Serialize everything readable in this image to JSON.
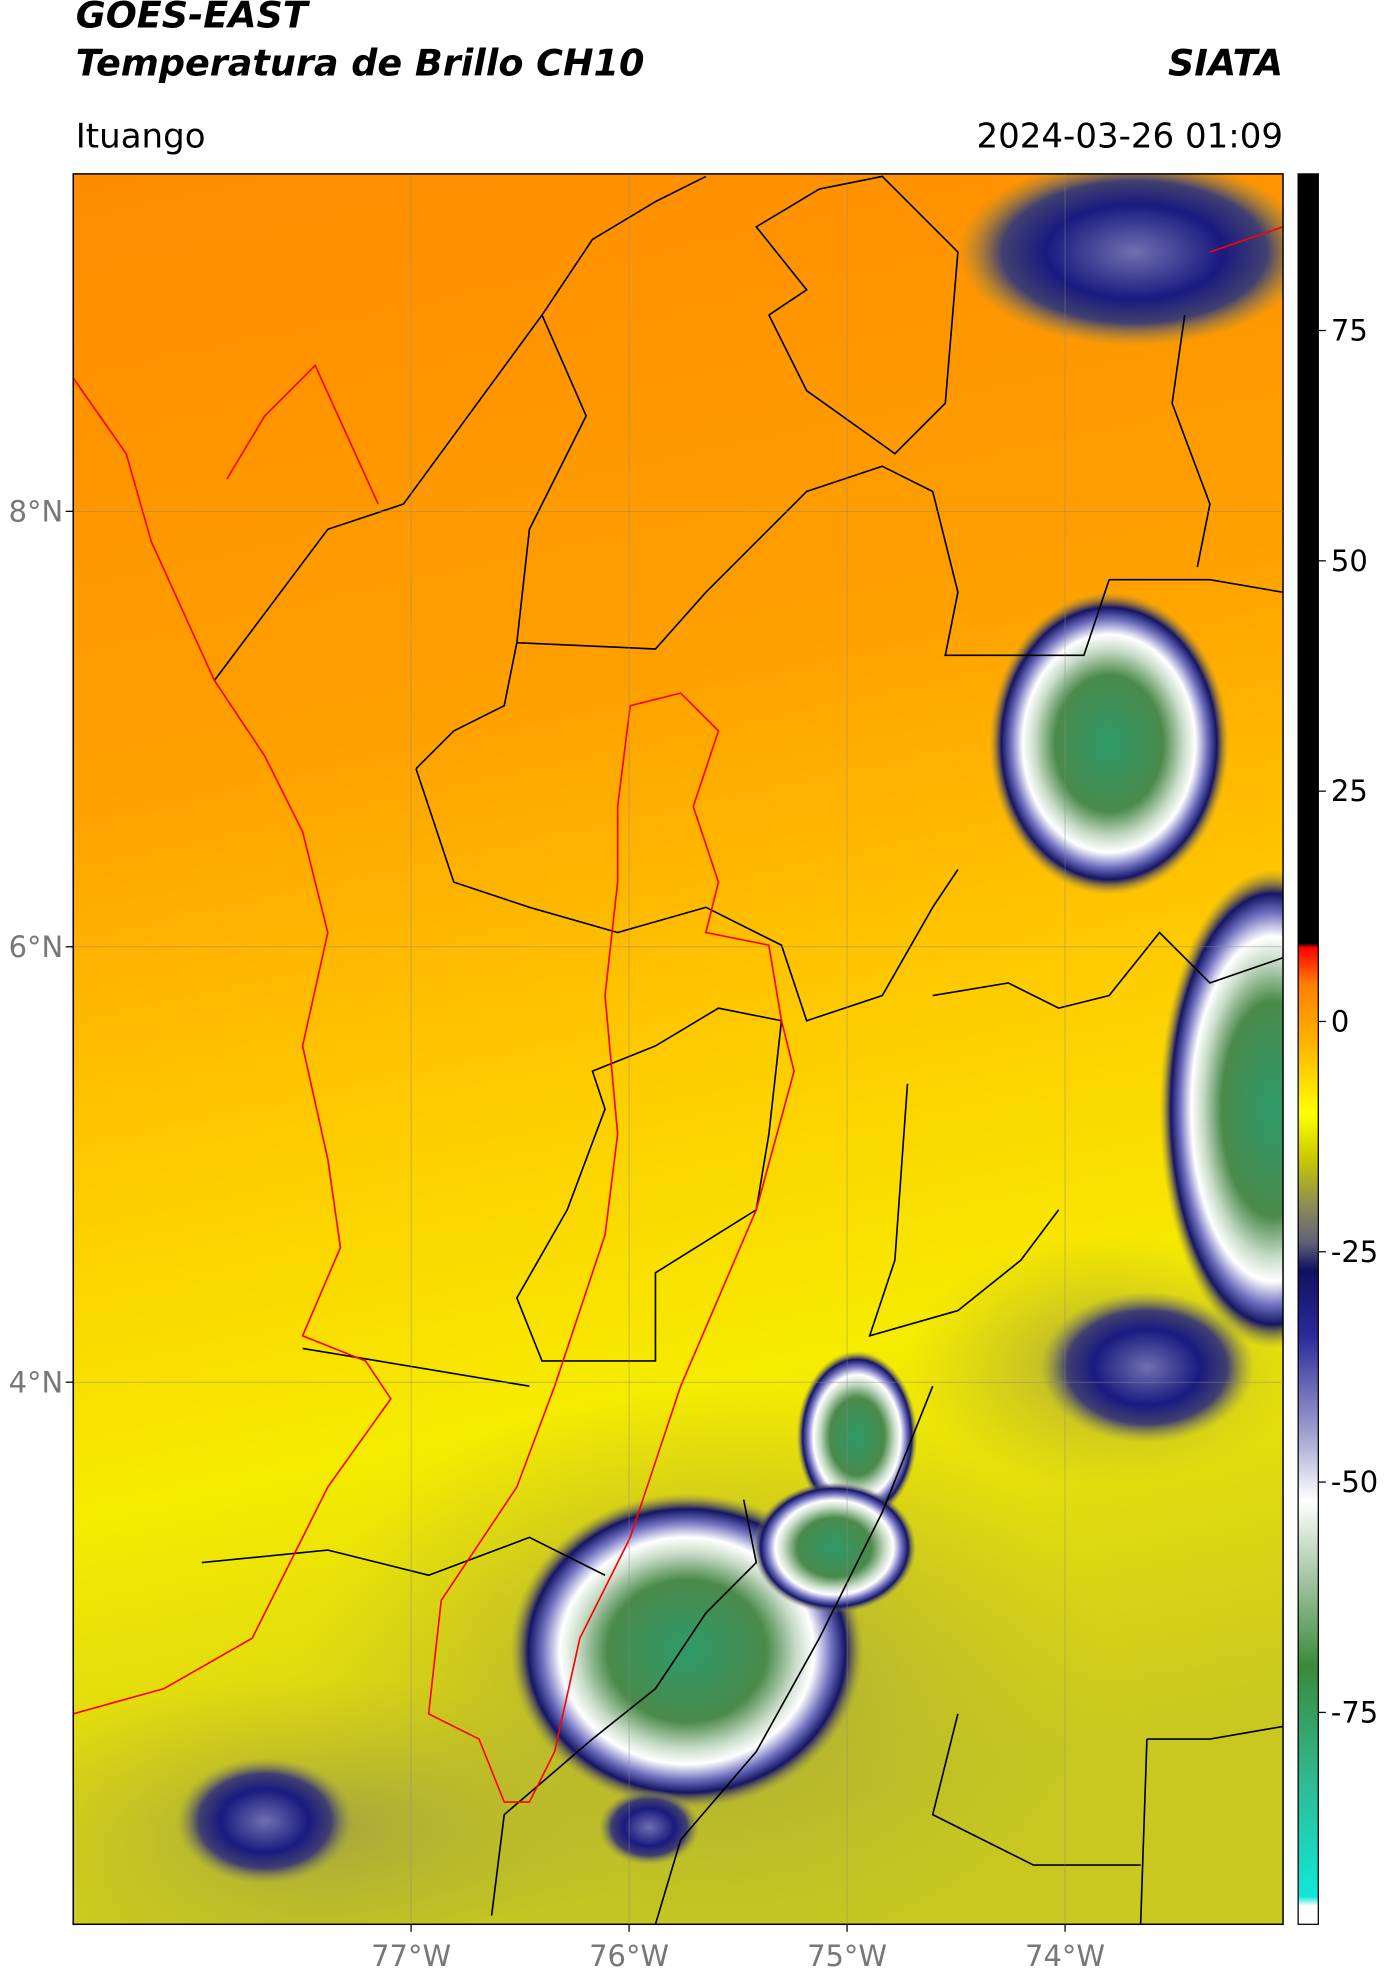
{
  "chart_data": {
    "type": "map",
    "title": "GOES-EAST",
    "subtitle": "Temperatura de Brillo CH10",
    "source": "SIATA",
    "location": "Ituango",
    "datetime": "2024-03-26 01:09",
    "xlim": [
      -78.55,
      -73.0
    ],
    "ylim": [
      1.51,
      9.55
    ],
    "xticks": [
      {
        "value": -77,
        "label": "77°W"
      },
      {
        "value": -76,
        "label": "76°W"
      },
      {
        "value": -75,
        "label": "75°W"
      },
      {
        "value": -74,
        "label": "74°W"
      }
    ],
    "yticks": [
      {
        "value": 8,
        "label": "8°N"
      },
      {
        "value": 6,
        "label": "6°N"
      },
      {
        "value": 4,
        "label": "4°N"
      }
    ],
    "grid": true,
    "colorbar": {
      "lim": [
        -98,
        92
      ],
      "ticks": [
        75,
        50,
        25,
        0,
        -25,
        -50,
        -75
      ],
      "stops": [
        {
          "value": -98,
          "color": "#ffffff"
        },
        {
          "value": -96,
          "color": "#ffffff"
        },
        {
          "value": -95,
          "color": "#10e8d8"
        },
        {
          "value": -82,
          "color": "#30b890"
        },
        {
          "value": -70,
          "color": "#3a8a3a"
        },
        {
          "value": -60,
          "color": "#a8c8a8"
        },
        {
          "value": -52,
          "color": "#ffffff"
        },
        {
          "value": -44,
          "color": "#9898cc"
        },
        {
          "value": -34,
          "color": "#2a2a98"
        },
        {
          "value": -27,
          "color": "#101060"
        },
        {
          "value": -24,
          "color": "#606078"
        },
        {
          "value": -20,
          "color": "#8c8c58"
        },
        {
          "value": -15,
          "color": "#c8c800"
        },
        {
          "value": -10,
          "color": "#ffff00"
        },
        {
          "value": -2,
          "color": "#ffb000"
        },
        {
          "value": 4,
          "color": "#ff8000"
        },
        {
          "value": 8,
          "color": "#ff0000"
        },
        {
          "value": 8.5,
          "color": "#000000"
        },
        {
          "value": 92,
          "color": "#000000"
        }
      ]
    }
  }
}
